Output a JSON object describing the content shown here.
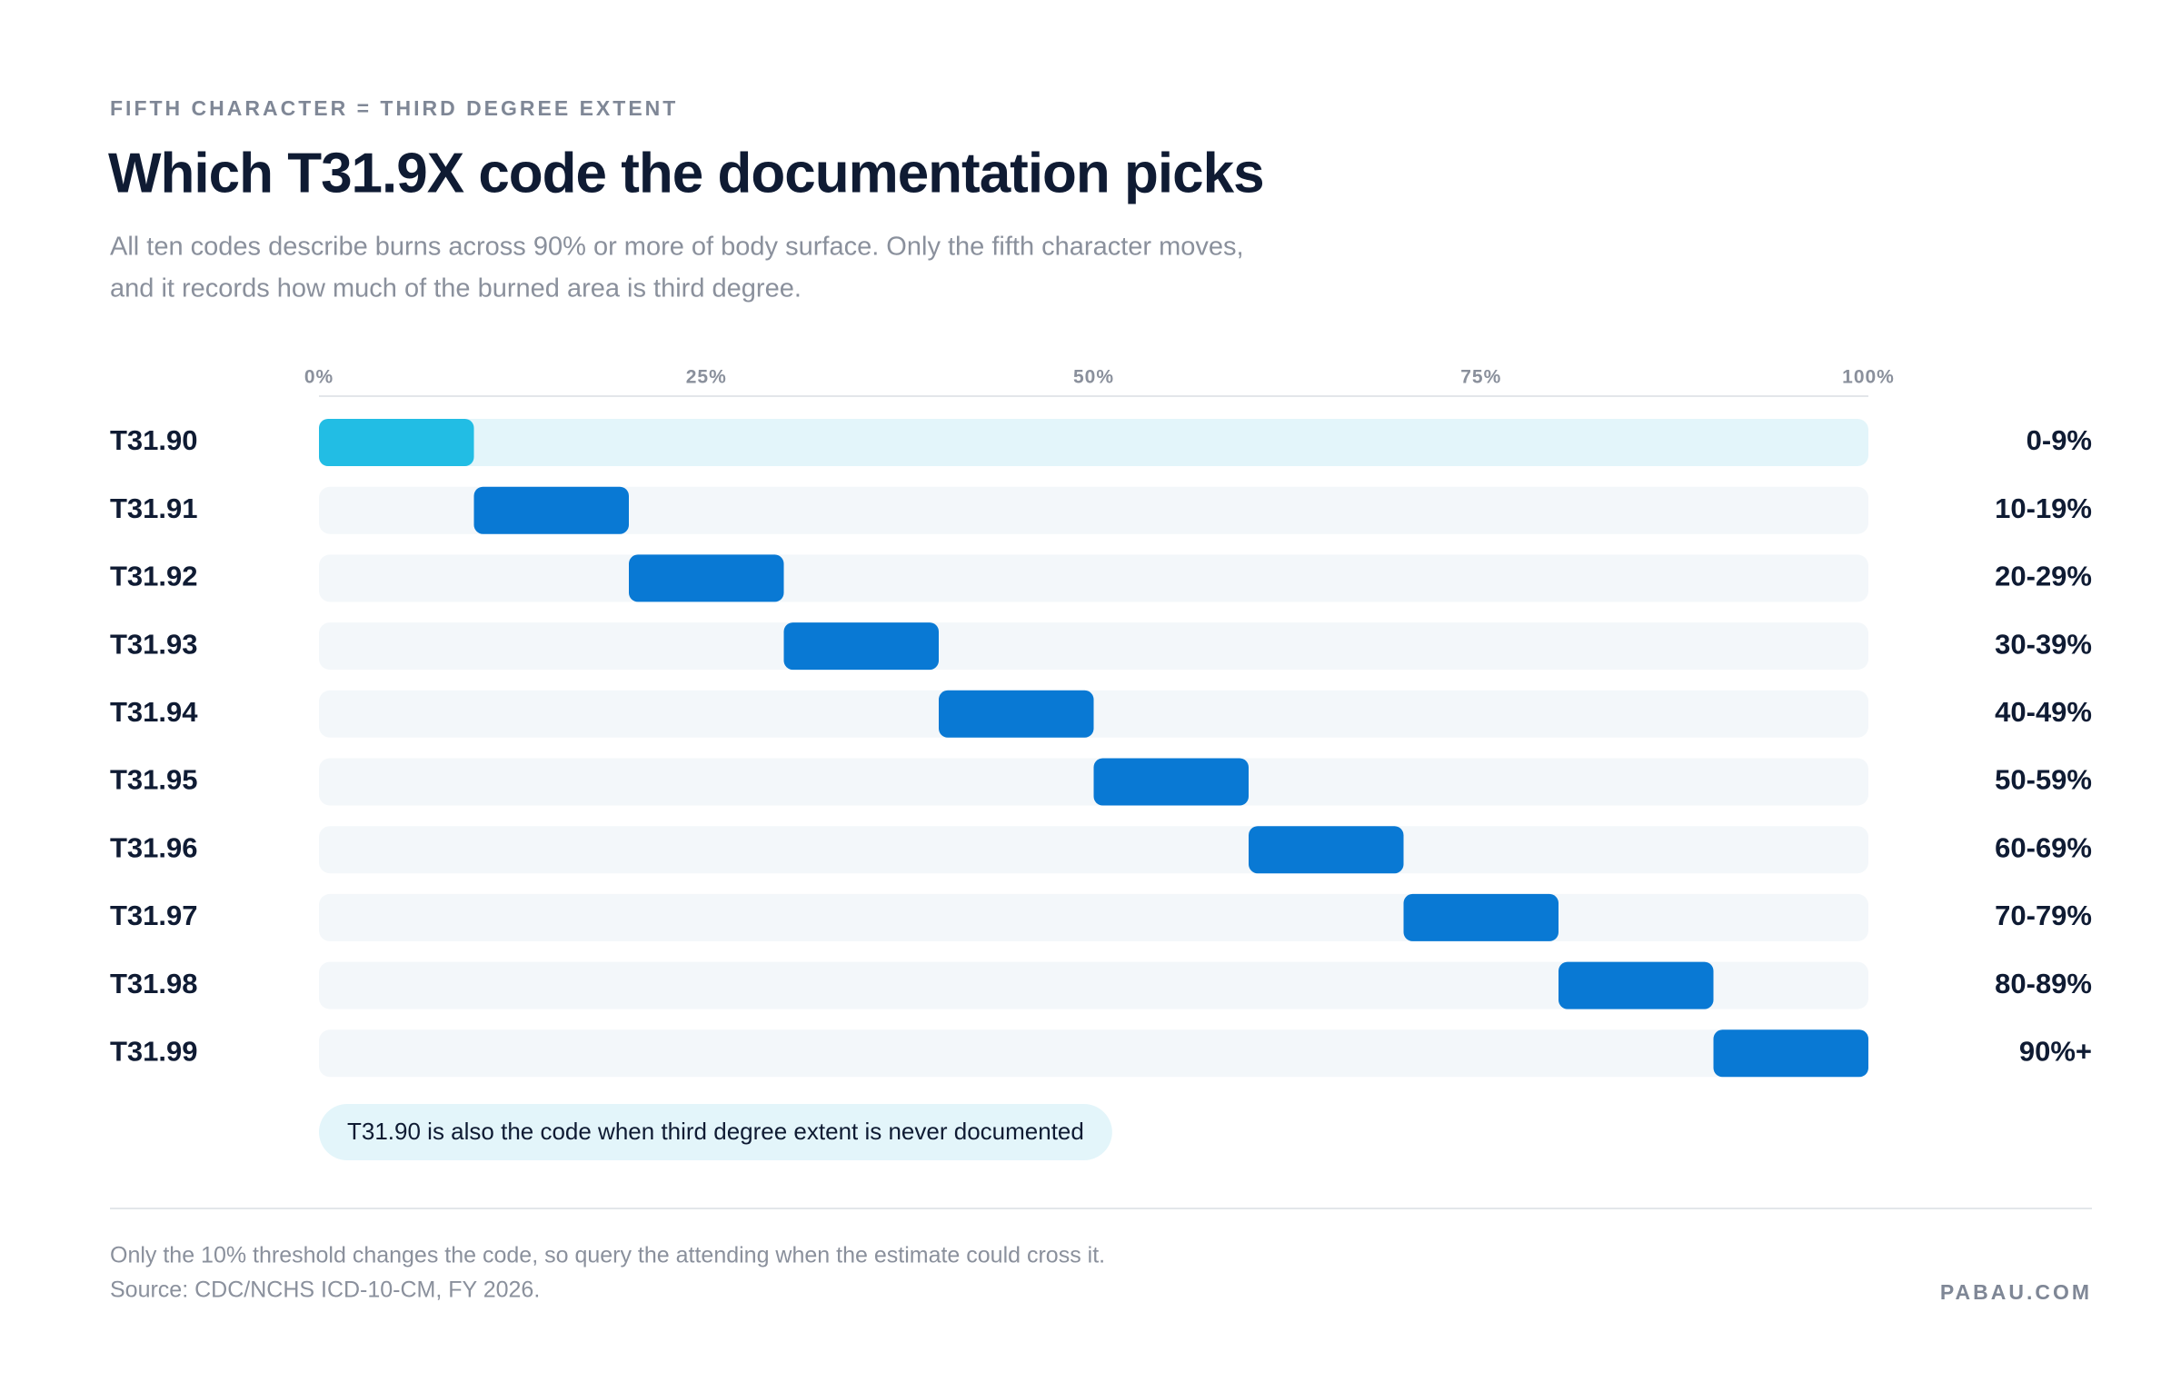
{
  "chart_data": {
    "type": "range",
    "kicker": "FIFTH CHARACTER = THIRD DEGREE EXTENT",
    "title": "Which T31.9X code the documentation picks",
    "subtitle": [
      "All ten codes describe burns across 90% or more of body surface. Only the fifth character moves,",
      "and it records how much of the burned area is third degree."
    ],
    "categories": [
      "T31.90",
      "T31.91",
      "T31.92",
      "T31.93",
      "T31.94",
      "T31.95",
      "T31.96",
      "T31.97",
      "T31.98",
      "T31.99"
    ],
    "starts": [
      0,
      10,
      20,
      30,
      40,
      50,
      60,
      70,
      80,
      90
    ],
    "ends": [
      10,
      20,
      30,
      40,
      50,
      60,
      70,
      80,
      90,
      100
    ],
    "extent_labels": [
      "0-9%",
      "10-19%",
      "20-29%",
      "30-39%",
      "40-49%",
      "50-59%",
      "60-69%",
      "70-79%",
      "80-89%",
      "90%+"
    ],
    "colors": [
      "#22bde4",
      "#0979d4",
      "#0979d4",
      "#0979d4",
      "#0979d4",
      "#0979d4",
      "#0979d4",
      "#0979d4",
      "#0979d4",
      "#0979d4"
    ],
    "track_colors": [
      "#e3f5fa",
      "#f3f7fa",
      "#f3f7fa",
      "#f3f7fa",
      "#f3f7fa",
      "#f3f7fa",
      "#f3f7fa",
      "#f3f7fa",
      "#f3f7fa",
      "#f3f7fa"
    ],
    "xlim": [
      0,
      100
    ],
    "xticks": [
      {
        "value": 0,
        "label": "0%"
      },
      {
        "value": 25,
        "label": "25%"
      },
      {
        "value": 50,
        "label": "50%"
      },
      {
        "value": 75,
        "label": "75%"
      },
      {
        "value": 100,
        "label": "100%"
      }
    ],
    "annotation": "T31.90 is also the code when third degree extent is never documented",
    "footnote": "Only the 10% threshold changes the code, so query the attending when the estimate could cross it.",
    "source": "Source: CDC/NCHS ICD-10-CM, FY 2026.",
    "brand": "PABAU.COM"
  }
}
